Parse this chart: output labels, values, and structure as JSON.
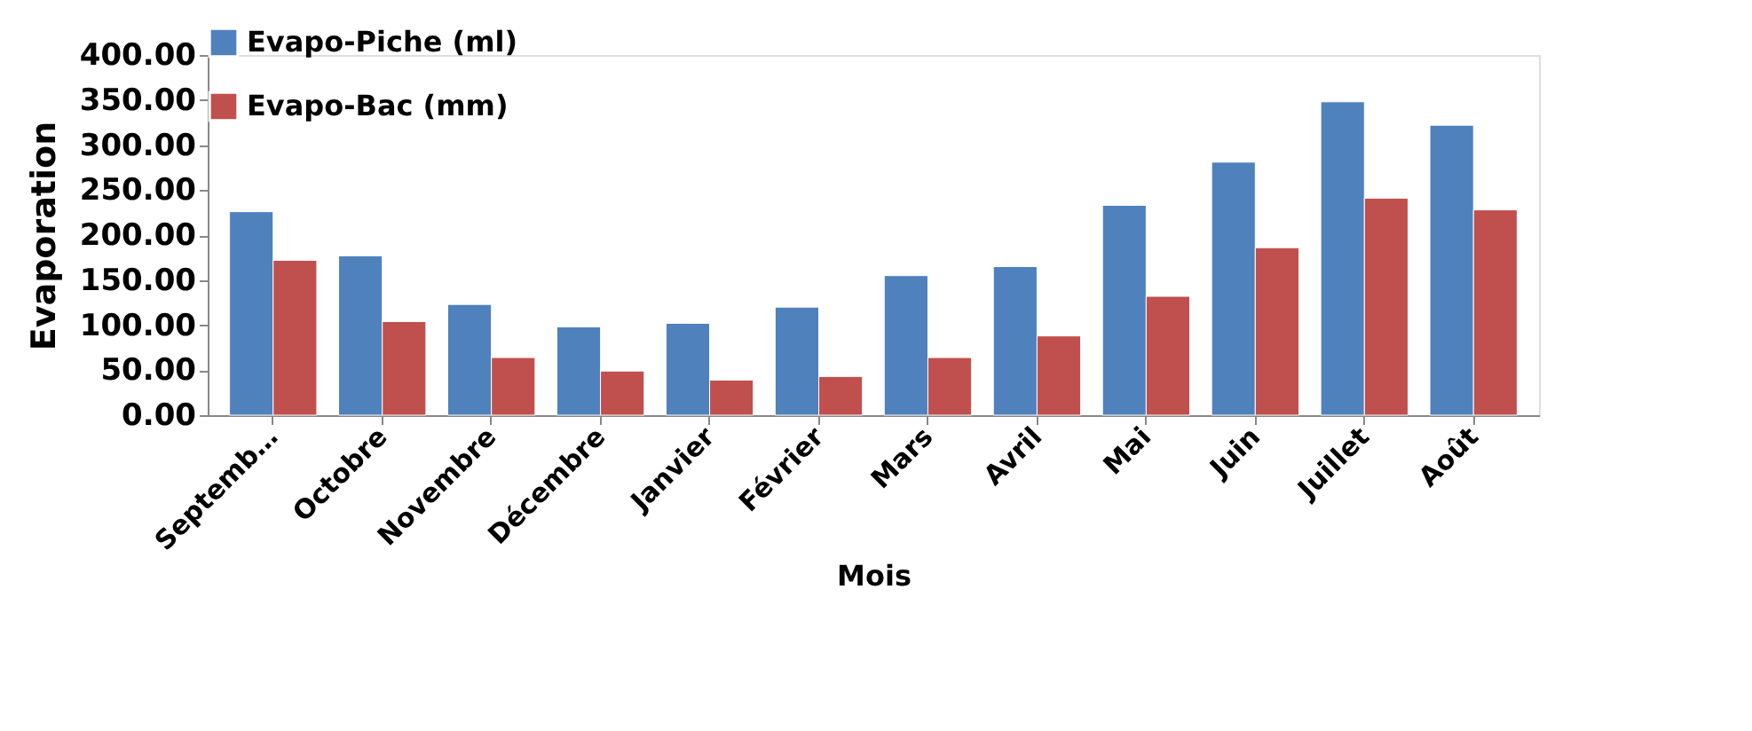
{
  "chart_data": {
    "type": "bar",
    "xlabel": "Mois",
    "ylabel": "Evaporation",
    "categories": [
      "Septemb…",
      "Octobre",
      "Novembre",
      "Décembre",
      "Janvier",
      "Février",
      "Mars",
      "Avril",
      "Mai",
      "Juin",
      "Juillet",
      "Août"
    ],
    "series": [
      {
        "name": "Evapo-Piche (ml)",
        "color": "#4f81bd",
        "values": [
          226,
          177,
          123,
          98,
          102,
          120,
          155,
          165,
          233,
          281,
          348,
          322
        ]
      },
      {
        "name": "Evapo-Bac (mm)",
        "color": "#c0504d",
        "values": [
          172,
          104,
          64,
          49,
          39,
          43,
          64,
          88,
          132,
          186,
          241,
          228
        ]
      }
    ],
    "ylim": [
      0,
      400
    ],
    "yticks": [
      {
        "value": 0,
        "label": "0.00"
      },
      {
        "value": 50,
        "label": "50.00"
      },
      {
        "value": 100,
        "label": "100.00"
      },
      {
        "value": 150,
        "label": "150.00"
      },
      {
        "value": 200,
        "label": "200.00"
      },
      {
        "value": 250,
        "label": "250.00"
      },
      {
        "value": 300,
        "label": "300.00"
      },
      {
        "value": 350,
        "label": "350.00"
      },
      {
        "value": 400,
        "label": "400.00"
      }
    ],
    "grid": false,
    "legend": "top"
  }
}
